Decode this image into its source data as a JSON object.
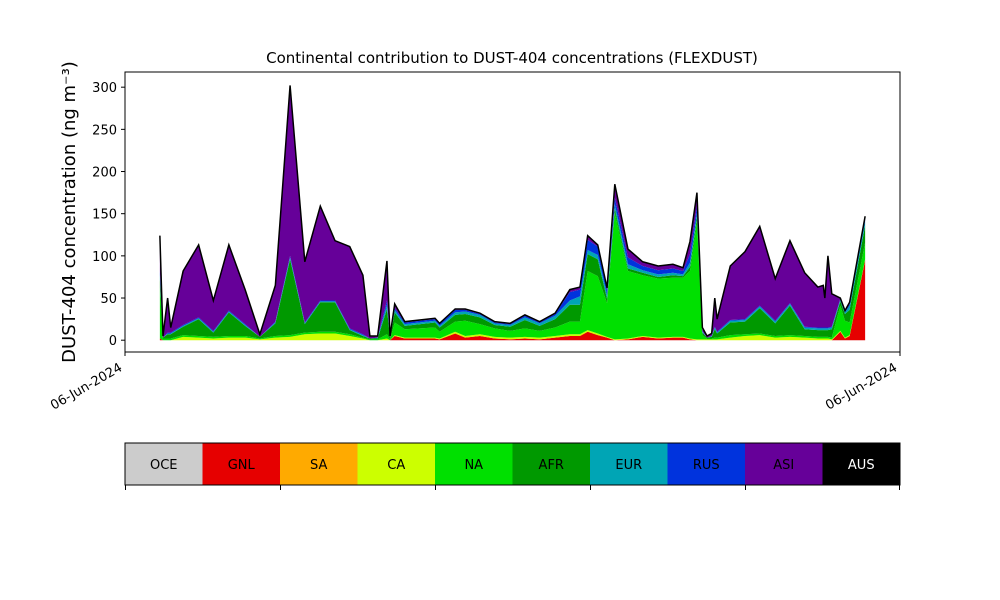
{
  "chart_data": {
    "type": "stacked_area",
    "title": "Continental contribution to DUST-404 concentrations (FLEXDUST)",
    "y_label": "DUST-404 concentration (ng m⁻³)",
    "x": [
      4.5,
      4.9,
      5.5,
      5.9,
      7.5,
      9.5,
      11.4,
      13.4,
      15.5,
      17.4,
      19.4,
      21.3,
      23.2,
      25.2,
      27.1,
      29.0,
      30.7,
      31.6,
      32.6,
      33.8,
      34.2,
      34.8,
      36.1,
      40.0,
      40.6,
      42.6,
      43.9,
      45.8,
      47.7,
      49.7,
      51.6,
      53.5,
      55.5,
      57.4,
      58.7,
      59.7,
      61.0,
      62.2,
      63.2,
      64.9,
      66.8,
      68.8,
      70.7,
      72.0,
      72.9,
      73.8,
      74.5,
      75.1,
      75.7,
      76.1,
      76.4,
      78.1,
      80.0,
      81.9,
      83.9,
      85.8,
      87.7,
      89.4,
      90.1,
      90.3,
      90.7,
      91.2,
      92.3,
      92.9,
      93.5,
      95.5
    ],
    "series": [
      {
        "name": "OCE",
        "color": "#cccccc",
        "values": [
          0,
          0,
          0,
          0,
          0,
          0,
          0,
          0,
          0,
          0,
          0,
          0,
          0,
          0,
          0,
          0,
          0,
          0,
          0,
          0,
          0,
          0,
          0,
          0,
          0,
          0,
          0,
          0,
          0,
          0,
          0,
          0,
          0,
          0,
          0,
          0,
          0,
          0,
          0,
          0,
          0,
          0,
          0,
          0,
          0,
          0,
          0,
          0,
          0,
          0,
          0,
          0,
          0,
          0,
          0,
          0,
          0,
          0,
          0,
          0,
          0,
          0,
          0,
          0,
          0,
          0
        ]
      },
      {
        "name": "GNL",
        "color": "#e60000",
        "values": [
          2,
          0,
          0,
          0,
          0,
          0,
          0,
          0,
          0,
          0,
          0,
          0,
          0,
          0,
          0,
          0,
          0,
          0,
          0,
          0,
          0,
          5,
          2,
          2,
          1,
          8,
          3,
          5,
          2,
          1,
          2,
          1,
          3,
          5,
          5,
          10,
          6,
          3,
          0,
          1,
          4,
          2,
          3,
          3,
          1,
          0,
          0,
          0,
          0,
          0,
          0,
          0,
          0,
          0,
          0,
          0,
          0,
          0,
          0,
          0,
          0,
          0,
          10,
          2,
          5,
          95
        ]
      },
      {
        "name": "SA",
        "color": "#ffaa00",
        "values": [
          0,
          0,
          0,
          0,
          0,
          0,
          0,
          0,
          0,
          0,
          0,
          0,
          0,
          0,
          0,
          0,
          0,
          0,
          0,
          0,
          0,
          0,
          0,
          0,
          0,
          0,
          0,
          0,
          0,
          0,
          0,
          0,
          0,
          0,
          0,
          0,
          0,
          0,
          0,
          0,
          0,
          0,
          0,
          0,
          0,
          0,
          0,
          0,
          0,
          0,
          0,
          0,
          0,
          0,
          0,
          0,
          0,
          0,
          0,
          0,
          0,
          0,
          0,
          0,
          0,
          0
        ]
      },
      {
        "name": "CA",
        "color": "#ccff00",
        "values": [
          0,
          0,
          0,
          0,
          4,
          3,
          2,
          3,
          3,
          1,
          3,
          4,
          7,
          8,
          8,
          5,
          2,
          0,
          0,
          2,
          0,
          1,
          1,
          1,
          1,
          2,
          2,
          2,
          2,
          2,
          2,
          2,
          2,
          2,
          2,
          2,
          2,
          1,
          1,
          1,
          1,
          1,
          1,
          1,
          1,
          1,
          1,
          1,
          1,
          1,
          1,
          3,
          5,
          6,
          3,
          4,
          3,
          2,
          2,
          2,
          2,
          1,
          1,
          1,
          1,
          1
        ]
      },
      {
        "name": "NA",
        "color": "#00e000",
        "values": [
          60,
          2,
          2,
          2,
          2,
          2,
          2,
          2,
          2,
          1,
          2,
          2,
          2,
          2,
          2,
          2,
          1,
          1,
          1,
          5,
          1,
          15,
          10,
          12,
          8,
          12,
          18,
          12,
          10,
          8,
          10,
          8,
          10,
          15,
          15,
          70,
          68,
          40,
          150,
          80,
          72,
          70,
          70,
          70,
          80,
          140,
          5,
          1,
          1,
          2,
          2,
          3,
          2,
          2,
          2,
          2,
          2,
          2,
          2,
          2,
          2,
          2,
          30,
          20,
          15,
          20
        ]
      },
      {
        "name": "AFR",
        "color": "#009900",
        "values": [
          10,
          1,
          5,
          5,
          10,
          20,
          5,
          28,
          12,
          2,
          15,
          90,
          10,
          35,
          35,
          5,
          2,
          1,
          1,
          30,
          2,
          12,
          4,
          6,
          5,
          8,
          8,
          8,
          4,
          5,
          10,
          6,
          10,
          20,
          20,
          20,
          20,
          5,
          5,
          3,
          3,
          2,
          3,
          2,
          5,
          5,
          3,
          1,
          2,
          10,
          5,
          15,
          15,
          30,
          15,
          35,
          8,
          8,
          8,
          8,
          8,
          10,
          5,
          8,
          15,
          20
        ]
      },
      {
        "name": "EUR",
        "color": "#00a5b5",
        "values": [
          5,
          0,
          1,
          1,
          1,
          1,
          1,
          1,
          1,
          0,
          1,
          2,
          1,
          1,
          1,
          1,
          1,
          0,
          1,
          5,
          0,
          3,
          2,
          2,
          2,
          3,
          3,
          3,
          2,
          2,
          3,
          3,
          4,
          5,
          10,
          5,
          5,
          5,
          5,
          5,
          3,
          3,
          3,
          2,
          5,
          5,
          1,
          0,
          1,
          2,
          1,
          2,
          2,
          2,
          2,
          2,
          2,
          2,
          2,
          2,
          2,
          2,
          2,
          2,
          5,
          5
        ]
      },
      {
        "name": "RUS",
        "color": "#0033dd",
        "values": [
          5,
          0,
          1,
          1,
          1,
          1,
          1,
          1,
          1,
          0,
          1,
          2,
          1,
          1,
          1,
          1,
          1,
          0,
          0,
          5,
          0,
          2,
          2,
          2,
          2,
          3,
          2,
          1,
          1,
          1,
          2,
          1,
          2,
          10,
          8,
          12,
          10,
          5,
          8,
          8,
          5,
          5,
          5,
          4,
          10,
          8,
          1,
          0,
          0,
          1,
          1,
          1,
          1,
          1,
          1,
          1,
          1,
          1,
          1,
          1,
          1,
          1,
          1,
          1,
          2,
          4
        ]
      },
      {
        "name": "ASI",
        "color": "#660099",
        "values": [
          42,
          2,
          41,
          6,
          64,
          86,
          36,
          78,
          41,
          3,
          43,
          202,
          72,
          112,
          71,
          97,
          70,
          3,
          2,
          47,
          2,
          5,
          1,
          1,
          1,
          1,
          1,
          1,
          1,
          1,
          1,
          1,
          1,
          3,
          3,
          5,
          2,
          3,
          16,
          10,
          5,
          5,
          5,
          4,
          15,
          16,
          4,
          2,
          3,
          34,
          15,
          64,
          80,
          94,
          50,
          74,
          64,
          48,
          50,
          35,
          85,
          39,
          1,
          1,
          2,
          2
        ]
      },
      {
        "name": "AUS",
        "color": "#000000",
        "values": [
          0,
          0,
          0,
          0,
          0,
          0,
          0,
          0,
          0,
          0,
          0,
          0,
          0,
          0,
          0,
          0,
          0,
          0,
          0,
          0,
          0,
          0,
          0,
          0,
          0,
          0,
          0,
          0,
          0,
          0,
          0,
          0,
          0,
          0,
          0,
          0,
          0,
          0,
          0,
          0,
          0,
          0,
          0,
          0,
          0,
          0,
          0,
          0,
          0,
          0,
          0,
          0,
          0,
          0,
          0,
          0,
          0,
          0,
          0,
          0,
          0,
          0,
          0,
          0,
          0,
          0
        ]
      }
    ],
    "xlim": [
      0,
      100
    ],
    "xticks": [
      {
        "value": 0,
        "label": "06-Jun-2024"
      },
      {
        "value": 100,
        "label": "06-Jun-2024"
      }
    ],
    "ylim": [
      -14,
      318
    ],
    "yticks": [
      0,
      50,
      100,
      150,
      200,
      250,
      300
    ],
    "grid": false
  }
}
